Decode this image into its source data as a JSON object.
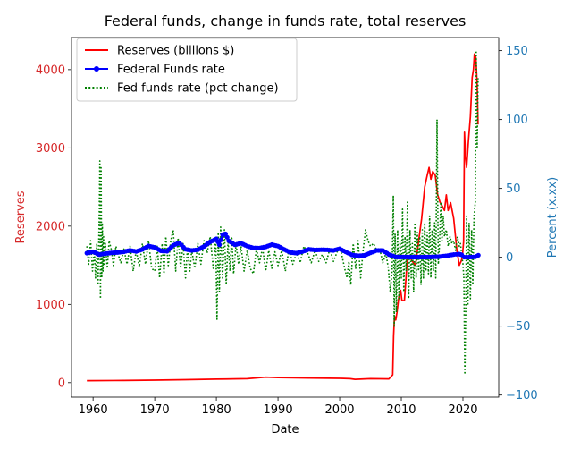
{
  "chart_data": {
    "type": "line",
    "title": "Federal funds, change in funds rate, total reserves",
    "xlabel": "Date",
    "ylabel_left": "Reserves",
    "ylabel_right": "Percent (x.xx)",
    "xlim": [
      1956.5,
      2025.8
    ],
    "ylim_left": [
      -185,
      4410
    ],
    "ylim_right": [
      -101.5,
      159.5
    ],
    "x_ticks": [
      1960,
      1970,
      1980,
      1990,
      2000,
      2010,
      2020
    ],
    "y_left_ticks": [
      0,
      1000,
      2000,
      3000,
      4000
    ],
    "y_right_ticks": [
      -100,
      -50,
      0,
      50,
      100,
      150
    ],
    "legend_position": "top-left",
    "grid": false,
    "colors": {
      "reserves": "#ff0000",
      "fedfunds": "#0000ff",
      "pct_change": "#008000",
      "left_axis": "#d62728",
      "right_axis": "#1f77b4"
    },
    "series": [
      {
        "name": "Reserves (billions $)",
        "axis": "left",
        "style": "solid",
        "color": "#ff0000",
        "x": [
          1959.0,
          1965.0,
          1970.0,
          1975.0,
          1980.0,
          1985.0,
          1988.0,
          1990.0,
          1995.0,
          2000.0,
          2001.7,
          2002.5,
          2005.0,
          2008.0,
          2008.6,
          2008.75,
          2008.9,
          2009.1,
          2009.3,
          2009.6,
          2009.9,
          2010.1,
          2010.5,
          2011.0,
          2011.4,
          2011.8,
          2012.3,
          2012.8,
          2013.3,
          2013.8,
          2014.2,
          2014.5,
          2014.8,
          2015.1,
          2015.5,
          2015.9,
          2016.3,
          2016.7,
          2017.0,
          2017.3,
          2017.6,
          2018.0,
          2018.5,
          2019.0,
          2019.4,
          2019.7,
          2019.9,
          2020.1,
          2020.25,
          2020.4,
          2020.6,
          2020.9,
          2021.2,
          2021.5,
          2021.7,
          2021.85,
          2022.1,
          2022.3,
          2022.45
        ],
        "y": [
          25,
          28,
          32,
          38,
          45,
          50,
          70,
          65,
          60,
          55,
          50,
          42,
          50,
          48,
          100,
          600,
          850,
          800,
          900,
          1100,
          1180,
          1050,
          1050,
          1600,
          1600,
          1550,
          1500,
          1800,
          2100,
          2500,
          2650,
          2750,
          2600,
          2700,
          2650,
          2400,
          2300,
          2250,
          2200,
          2400,
          2200,
          2300,
          2100,
          1700,
          1500,
          1550,
          1600,
          1800,
          3200,
          2900,
          2750,
          3100,
          3400,
          3900,
          4000,
          4200,
          4150,
          3800,
          3300
        ]
      },
      {
        "name": "Federal Funds rate",
        "axis": "right",
        "style": "solid-markers",
        "color": "#0000ff",
        "x": [
          1959.0,
          1960.0,
          1961.0,
          1962.0,
          1963.0,
          1964.0,
          1965.0,
          1966.0,
          1967.0,
          1968.0,
          1969.0,
          1970.0,
          1971.0,
          1972.0,
          1973.0,
          1974.0,
          1975.0,
          1976.0,
          1977.0,
          1978.0,
          1979.0,
          1980.0,
          1980.5,
          1981.0,
          1981.5,
          1982.0,
          1983.0,
          1984.0,
          1985.0,
          1986.0,
          1987.0,
          1988.0,
          1989.0,
          1990.0,
          1991.0,
          1992.0,
          1993.0,
          1994.0,
          1995.0,
          1996.0,
          1997.0,
          1998.0,
          1999.0,
          2000.0,
          2001.0,
          2002.0,
          2003.0,
          2004.0,
          2005.0,
          2006.0,
          2007.0,
          2008.0,
          2008.9,
          2009.0,
          2010.0,
          2012.0,
          2014.0,
          2015.9,
          2016.5,
          2017.5,
          2018.5,
          2019.3,
          2019.8,
          2020.2,
          2021.0,
          2022.0,
          2022.5
        ],
        "y": [
          3.0,
          4.0,
          2.0,
          2.7,
          3.2,
          3.5,
          4.0,
          5.1,
          4.2,
          5.7,
          8.2,
          7.2,
          4.7,
          4.4,
          8.7,
          10.5,
          5.8,
          5.0,
          5.5,
          7.9,
          11.2,
          13.4,
          9.0,
          16.4,
          17.0,
          12.0,
          9.1,
          10.2,
          8.1,
          6.8,
          6.7,
          7.6,
          9.2,
          8.1,
          5.7,
          3.5,
          3.0,
          4.2,
          5.8,
          5.3,
          5.5,
          5.4,
          5.0,
          6.2,
          3.9,
          1.7,
          1.1,
          1.4,
          3.2,
          5.0,
          5.0,
          2.0,
          0.5,
          0.2,
          0.2,
          0.1,
          0.1,
          0.4,
          0.6,
          1.2,
          2.0,
          2.4,
          1.8,
          0.1,
          0.1,
          0.3,
          1.5
        ]
      },
      {
        "name": "Fed funds rate (pct change)",
        "axis": "right",
        "style": "dotted",
        "color": "#008000",
        "x": [
          1959.0,
          1959.3,
          1959.6,
          1959.9,
          1960.2,
          1960.4,
          1960.6,
          1960.8,
          1961.0,
          1961.1,
          1961.2,
          1961.3,
          1961.4,
          1961.5,
          1961.6,
          1961.7,
          1961.8,
          1962.0,
          1962.3,
          1962.6,
          1963.0,
          1963.3,
          1963.7,
          1964.0,
          1964.5,
          1965.0,
          1965.5,
          1966.0,
          1966.5,
          1967.0,
          1967.5,
          1968.0,
          1968.5,
          1969.0,
          1969.5,
          1970.0,
          1970.4,
          1970.8,
          1971.2,
          1971.5,
          1971.8,
          1972.2,
          1972.6,
          1973.0,
          1973.4,
          1973.8,
          1974.2,
          1974.6,
          1975.0,
          1975.3,
          1975.7,
          1976.0,
          1976.5,
          1977.0,
          1977.5,
          1978.0,
          1978.5,
          1979.0,
          1979.5,
          1979.9,
          1980.1,
          1980.3,
          1980.5,
          1980.7,
          1981.0,
          1981.3,
          1981.6,
          1981.9,
          1982.2,
          1982.5,
          1982.8,
          1983.2,
          1983.6,
          1984.0,
          1984.5,
          1985.0,
          1985.5,
          1986.0,
          1986.5,
          1987.0,
          1987.5,
          1988.0,
          1988.5,
          1989.0,
          1989.5,
          1990.0,
          1990.6,
          1991.2,
          1991.8,
          1992.4,
          1993.0,
          1993.6,
          1994.2,
          1994.8,
          1995.4,
          1996.0,
          1996.6,
          1997.2,
          1997.8,
          1998.4,
          1999.0,
          1999.6,
          2000.2,
          2000.8,
          2001.2,
          2001.5,
          2001.8,
          2002.2,
          2002.6,
          2003.0,
          2003.4,
          2003.8,
          2004.2,
          2004.6,
          2005.0,
          2005.5,
          2006.0,
          2006.5,
          2007.0,
          2007.5,
          2007.9,
          2008.2,
          2008.5,
          2008.7,
          2008.85,
          2009.0,
          2009.2,
          2009.4,
          2009.6,
          2009.8,
          2010.0,
          2010.2,
          2010.4,
          2010.6,
          2010.8,
          2011.0,
          2011.2,
          2011.4,
          2011.6,
          2011.8,
          2012.0,
          2012.2,
          2012.4,
          2012.6,
          2012.8,
          2013.0,
          2013.2,
          2013.4,
          2013.6,
          2013.8,
          2014.0,
          2014.2,
          2014.4,
          2014.6,
          2014.8,
          2015.0,
          2015.2,
          2015.4,
          2015.6,
          2015.8,
          2016.0,
          2016.2,
          2016.4,
          2016.6,
          2016.8,
          2017.0,
          2017.3,
          2017.6,
          2017.9,
          2018.2,
          2018.5,
          2018.8,
          2019.1,
          2019.4,
          2019.6,
          2019.8,
          2020.0,
          2020.15,
          2020.3,
          2020.45,
          2020.6,
          2020.8,
          2021.0,
          2021.2,
          2021.4,
          2021.6,
          2021.8,
          2022.0,
          2022.15,
          2022.3,
          2022.45
        ],
        "y": [
          8,
          -5,
          12,
          -10,
          5,
          -15,
          10,
          -20,
          30,
          70,
          -30,
          65,
          -15,
          25,
          -10,
          15,
          -5,
          10,
          -8,
          12,
          5,
          -6,
          8,
          3,
          -4,
          6,
          -5,
          8,
          -10,
          5,
          -7,
          10,
          -5,
          12,
          -8,
          -10,
          8,
          -15,
          10,
          -12,
          15,
          -6,
          12,
          20,
          -10,
          14,
          -8,
          10,
          -15,
          6,
          -10,
          5,
          -8,
          10,
          -5,
          12,
          3,
          15,
          -8,
          14,
          -45,
          18,
          -25,
          22,
          -15,
          20,
          -20,
          12,
          -10,
          15,
          -12,
          10,
          -5,
          8,
          -10,
          5,
          -8,
          -12,
          6,
          -4,
          7,
          -10,
          5,
          -8,
          4,
          -6,
          5,
          -10,
          6,
          -5,
          3,
          -4,
          8,
          3,
          -4,
          5,
          -3,
          2,
          -4,
          6,
          -3,
          4,
          5,
          -8,
          -15,
          -3,
          -20,
          10,
          -8,
          12,
          -15,
          5,
          20,
          12,
          8,
          10,
          5,
          6,
          -4,
          3,
          -8,
          -25,
          -10,
          45,
          -50,
          18,
          -40,
          20,
          -30,
          12,
          -15,
          35,
          -25,
          15,
          -10,
          40,
          -30,
          20,
          -15,
          10,
          -25,
          25,
          -15,
          18,
          -10,
          15,
          -20,
          20,
          -15,
          25,
          -10,
          18,
          -12,
          30,
          -15,
          20,
          -10,
          25,
          -15,
          100,
          -5,
          10,
          40,
          12,
          30,
          15,
          20,
          8,
          15,
          10,
          12,
          5,
          15,
          8,
          10,
          2,
          -5,
          -15,
          -85,
          -40,
          30,
          -35,
          25,
          -30,
          20,
          -20,
          30,
          40,
          150,
          80,
          130
        ]
      }
    ]
  }
}
